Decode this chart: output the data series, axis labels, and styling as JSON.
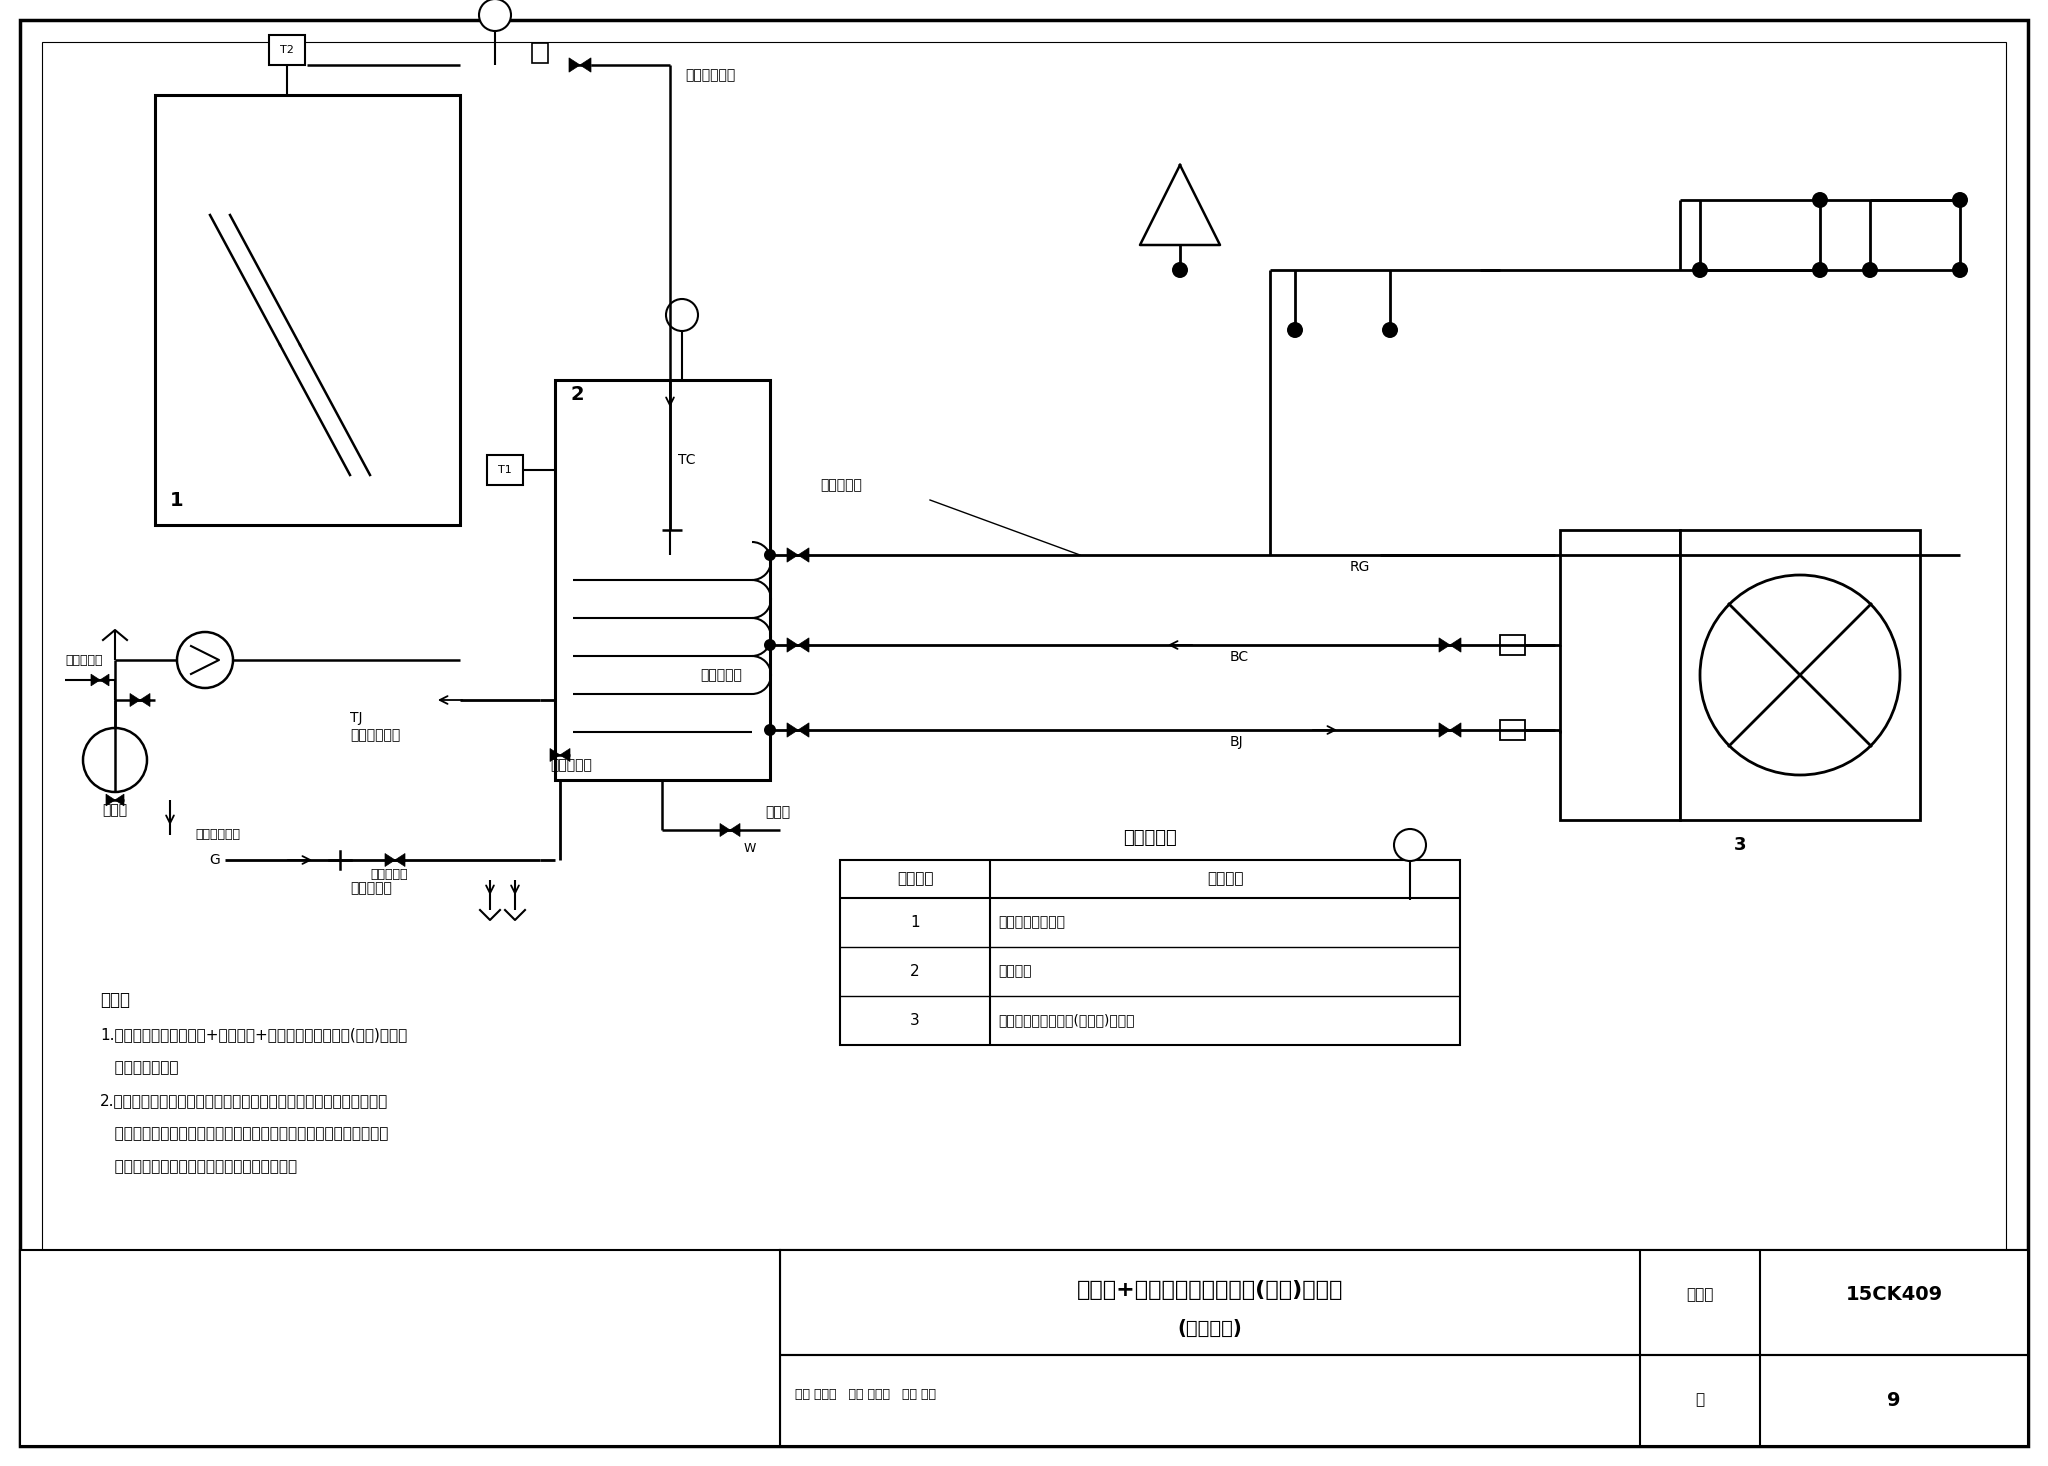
{
  "title_main": "太阳能+空气源热泵热水机组(家用)系统图",
  "title_sub": "(卫浴功能)",
  "figure_num_label": "图集号",
  "figure_num": "15CK409",
  "page_label": "页",
  "page_num": "9",
  "review_text": "审核 钟家淮    校对 王柱小    设计 李红",
  "table_title": "主要设备表",
  "table_headers": [
    "设备编号",
    "设备名称"
  ],
  "table_rows": [
    [
      "1",
      "太阳能平板集热器"
    ],
    [
      "2",
      "承压水箱"
    ],
    [
      "3",
      "空气源热泵热水机组(分体机)室外机"
    ]
  ],
  "notes_title": "说明：",
  "notes_line1a": "1.本系统为太阳能集热器+承压水箱+空气源热泵热水机组(家用)系统，",
  "notes_line1b": "   提供生活热水。",
  "notes_line2a": "2.太阳能集热器采用间接系统方案，承压水箱内置换热盘管，空气源热",
  "notes_line2b": "   泵热水机组采用直接系统方案。在防冻要求不严格的地区使用，太阳",
  "notes_line2c": "   能集热器加热方式推荐采用直接式系统方案。",
  "label_solar_out": "太阳能出水管",
  "label_solar_in": "太阳能进水管",
  "label_hot_supply": "热水供水管",
  "label_hp_out": "热泵出水管",
  "label_hp_in": "热泵进水管",
  "label_drain": "排污管",
  "label_domestic": "生活给水管",
  "label_expansion": "膨胀罐",
  "label_discharge": "工质排放总管",
  "label_safety": "排至安全处",
  "label_tc": "TC",
  "label_tj": "TJ",
  "label_rg": "RG",
  "label_bc": "BC",
  "label_bj": "BJ",
  "label_w": "W",
  "label_g": "G",
  "label_t1": "T1",
  "label_t2": "T2",
  "comp1": "1",
  "comp2": "2",
  "comp3": "3"
}
